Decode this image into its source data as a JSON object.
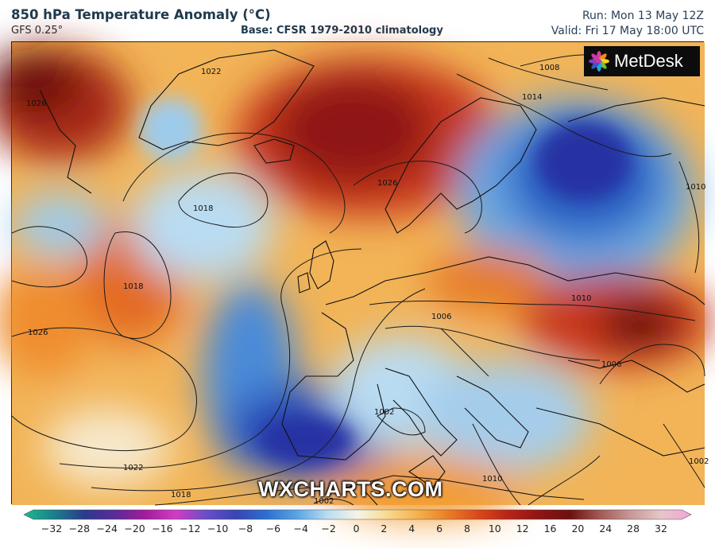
{
  "header": {
    "title": "850 hPa Temperature Anomaly (°C)",
    "model": "GFS 0.25°",
    "base": "Base: CFSR 1979-2010 climatology",
    "run": "Run: Mon 13 May 12Z",
    "valid": "Valid: Fri 17 May 18:00 UTC"
  },
  "map": {
    "logo_text": "MetDesk",
    "watermark": "WXCHARTS.COM",
    "isobar_labels": [
      "1026",
      "1022",
      "1008",
      "1014",
      "1018",
      "1026",
      "1018",
      "1026",
      "1010",
      "1010",
      "1006",
      "1002",
      "1006",
      "1022",
      "1018",
      "1002",
      "1010",
      "1002"
    ],
    "colors": {
      "strong_warm": "#6b0d0d",
      "warm": "#c8391a",
      "mild_warm": "#f29a2e",
      "neutral": "#f4f0dd",
      "mild_cold": "#9ecbea",
      "cold": "#3b7fd0",
      "strong_cold": "#2531a3"
    }
  },
  "colorbar": {
    "ticks": [
      "−32",
      "−28",
      "−24",
      "−20",
      "−16",
      "−12",
      "−10",
      "−8",
      "−6",
      "−4",
      "−2",
      "0",
      "2",
      "4",
      "6",
      "8",
      "10",
      "12",
      "16",
      "20",
      "24",
      "28",
      "32"
    ],
    "stops": [
      "#1fb88c",
      "#1a7f8c",
      "#2b3a8c",
      "#5a2a9a",
      "#a21c9a",
      "#d23bc4",
      "#6a4ec8",
      "#3a44b4",
      "#2c6fd0",
      "#59a4e4",
      "#b9dcf2",
      "#f6f4e6",
      "#f8d98e",
      "#f4b04a",
      "#ea7c26",
      "#d8471b",
      "#b82317",
      "#8f1414",
      "#6e1010",
      "#a35a56",
      "#c89898",
      "#e6c6c6",
      "#f2a4d8"
    ]
  }
}
